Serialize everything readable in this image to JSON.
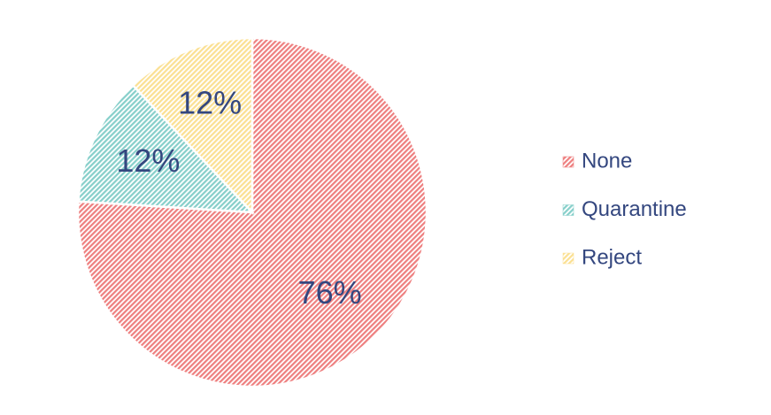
{
  "chart_data": {
    "type": "pie",
    "categories": [
      "None",
      "Quarantine",
      "Reject"
    ],
    "values": [
      76,
      12,
      12
    ],
    "value_labels": [
      "76%",
      "12%",
      "12%"
    ],
    "colors": [
      "#ee7f7f",
      "#86cfca",
      "#fbe092"
    ],
    "legend": "right"
  }
}
